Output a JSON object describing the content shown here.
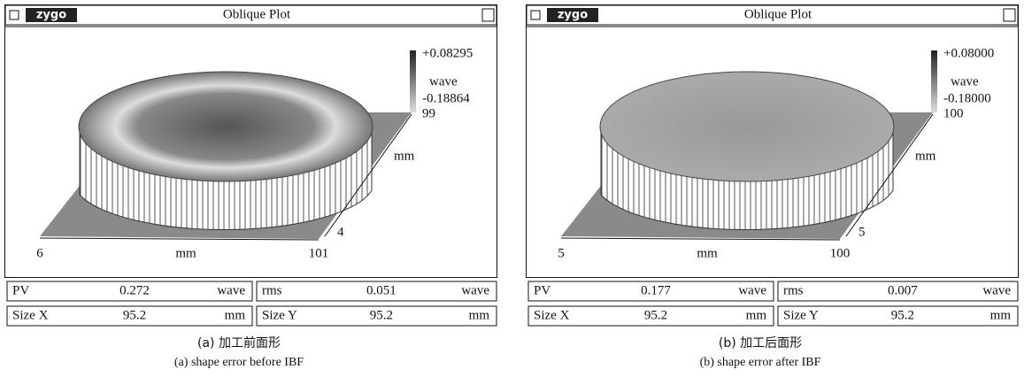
{
  "panels": [
    {
      "logo": "zygo",
      "title": "Oblique Plot",
      "scale": {
        "max": "+0.08295",
        "unit": "wave",
        "min": "-0.18864"
      },
      "y_axis": {
        "end": "99",
        "label": "mm",
        "start": "4"
      },
      "x_axis": {
        "start": "6",
        "label": "mm",
        "end": "101"
      },
      "stats": [
        {
          "label": "PV",
          "value": "0.272",
          "unit": "wave"
        },
        {
          "label": "rms",
          "value": "0.051",
          "unit": "wave"
        },
        {
          "label": "Size X",
          "value": "95.2",
          "unit": "mm"
        },
        {
          "label": "Size Y",
          "value": "95.2",
          "unit": "mm"
        }
      ],
      "caption_cn": "(a) 加工前面形",
      "caption_en": "(a) shape error before IBF"
    },
    {
      "logo": "zygo",
      "title": "Oblique Plot",
      "scale": {
        "max": "+0.08000",
        "unit": "wave",
        "min": "-0.18000"
      },
      "y_axis": {
        "end": "100",
        "label": "mm",
        "start": "5"
      },
      "x_axis": {
        "start": "5",
        "label": "mm",
        "end": "100"
      },
      "stats": [
        {
          "label": "PV",
          "value": "0.177",
          "unit": "wave"
        },
        {
          "label": "rms",
          "value": "0.007",
          "unit": "wave"
        },
        {
          "label": "Size X",
          "value": "95.2",
          "unit": "mm"
        },
        {
          "label": "Size Y",
          "value": "95.2",
          "unit": "mm"
        }
      ],
      "caption_cn": "(b) 加工后面形",
      "caption_en": "(b) shape error after IBF"
    }
  ]
}
